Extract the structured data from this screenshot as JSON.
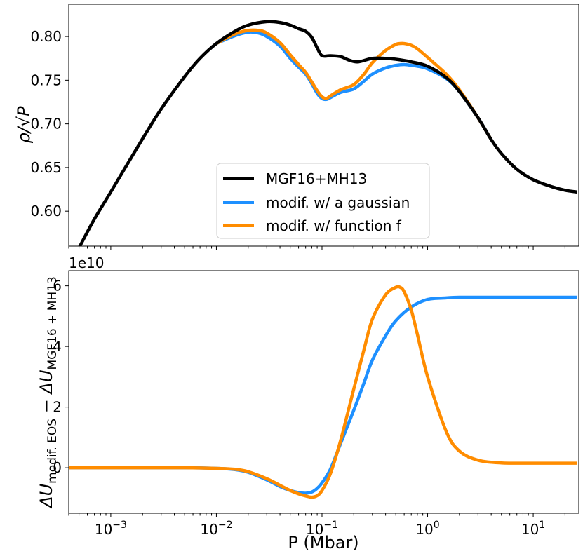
{
  "chart_data": [
    {
      "type": "line",
      "xscale": "log",
      "xlim": [
        0.0004,
        27
      ],
      "ylim": [
        0.56,
        0.837
      ],
      "xlabel": "",
      "ylabel": "ρ/√P",
      "yticks": [
        0.6,
        0.65,
        0.7,
        0.75,
        0.8
      ],
      "ytick_labels": [
        "0.60",
        "0.65",
        "0.70",
        "0.75",
        "0.80"
      ],
      "grid": false,
      "legend_position": "lower-center",
      "series": [
        {
          "name": "MGF16+MH13",
          "color": "#000000",
          "x": [
            0.0005,
            0.0007,
            0.001,
            0.002,
            0.003,
            0.005,
            0.007,
            0.01,
            0.015,
            0.02,
            0.03,
            0.04,
            0.05,
            0.06,
            0.07,
            0.08,
            0.09,
            0.1,
            0.12,
            0.15,
            0.18,
            0.22,
            0.3,
            0.4,
            0.5,
            0.7,
            1.0,
            1.5,
            2.0,
            3.0,
            4.0,
            5.0,
            7.0,
            10.0,
            15.0,
            20.0,
            26.0
          ],
          "y": [
            0.558,
            0.591,
            0.622,
            0.683,
            0.717,
            0.754,
            0.775,
            0.792,
            0.806,
            0.813,
            0.817,
            0.816,
            0.813,
            0.809,
            0.806,
            0.799,
            0.787,
            0.778,
            0.778,
            0.777,
            0.773,
            0.771,
            0.775,
            0.775,
            0.774,
            0.771,
            0.766,
            0.753,
            0.737,
            0.707,
            0.682,
            0.666,
            0.648,
            0.636,
            0.628,
            0.624,
            0.622
          ]
        },
        {
          "name": "modif. w/ a gaussian",
          "color": "#1e90ff",
          "x": [
            0.01,
            0.015,
            0.02,
            0.025,
            0.03,
            0.04,
            0.05,
            0.06,
            0.07,
            0.08,
            0.09,
            0.1,
            0.11,
            0.12,
            0.15,
            0.2,
            0.25,
            0.3,
            0.4,
            0.5,
            0.6,
            0.7,
            0.8,
            1.0,
            1.5,
            2.0,
            3.0,
            4.0
          ],
          "y": [
            0.792,
            0.801,
            0.805,
            0.804,
            0.8,
            0.789,
            0.775,
            0.765,
            0.757,
            0.746,
            0.735,
            0.729,
            0.728,
            0.73,
            0.736,
            0.74,
            0.749,
            0.757,
            0.764,
            0.767,
            0.768,
            0.767,
            0.766,
            0.763,
            0.752,
            0.737,
            0.707,
            0.682
          ]
        },
        {
          "name": "modif. w/ function f",
          "color": "#ff8c00",
          "x": [
            0.01,
            0.015,
            0.02,
            0.025,
            0.03,
            0.04,
            0.05,
            0.06,
            0.07,
            0.08,
            0.09,
            0.1,
            0.11,
            0.12,
            0.15,
            0.2,
            0.25,
            0.3,
            0.4,
            0.5,
            0.55,
            0.6,
            0.7,
            0.8,
            1.0,
            1.5,
            2.0,
            3.0,
            4.0
          ],
          "y": [
            0.792,
            0.803,
            0.807,
            0.807,
            0.804,
            0.793,
            0.779,
            0.768,
            0.759,
            0.748,
            0.738,
            0.731,
            0.729,
            0.732,
            0.739,
            0.745,
            0.757,
            0.77,
            0.784,
            0.791,
            0.792,
            0.792,
            0.79,
            0.786,
            0.776,
            0.757,
            0.739,
            0.707,
            0.682
          ]
        }
      ]
    },
    {
      "type": "line",
      "xscale": "log",
      "xlim": [
        0.0004,
        27
      ],
      "ylim": [
        -1.5,
        6.5
      ],
      "xlabel": "P (Mbar)",
      "ylabel": "ΔU modif. EOS − ΔU MGF16+MH13",
      "ylabel_main_1": "ΔU",
      "ylabel_sub_1": "modif. EOS",
      "ylabel_mid": " − ΔU",
      "ylabel_sub_2": "MGF16 + MH13",
      "offset_text": "1e10",
      "yticks": [
        0,
        2,
        4,
        6
      ],
      "ytick_labels": [
        "0",
        "2",
        "4",
        "6"
      ],
      "xticks": [
        0.001,
        0.01,
        0.1,
        1,
        10
      ],
      "xtick_labels": [
        {
          "base": "10",
          "exp": "−3"
        },
        {
          "base": "10",
          "exp": "−2"
        },
        {
          "base": "10",
          "exp": "−1"
        },
        {
          "base": "10",
          "exp": "0"
        },
        {
          "base": "10",
          "exp": "1"
        }
      ],
      "grid": false,
      "series": [
        {
          "name": "modif. w/ a gaussian",
          "color": "#1e90ff",
          "x": [
            0.0004,
            0.001,
            0.005,
            0.01,
            0.015,
            0.02,
            0.03,
            0.04,
            0.05,
            0.06,
            0.07,
            0.08,
            0.09,
            0.1,
            0.12,
            0.15,
            0.2,
            0.25,
            0.3,
            0.4,
            0.5,
            0.7,
            1.0,
            1.5,
            2.0,
            3.0,
            5.0,
            10.0,
            26.0
          ],
          "y": [
            0.0,
            0.0,
            0.0,
            -0.02,
            -0.06,
            -0.15,
            -0.4,
            -0.62,
            -0.75,
            -0.82,
            -0.84,
            -0.8,
            -0.68,
            -0.5,
            -0.05,
            0.8,
            1.9,
            2.8,
            3.55,
            4.35,
            4.85,
            5.3,
            5.55,
            5.6,
            5.62,
            5.62,
            5.62,
            5.62,
            5.62
          ]
        },
        {
          "name": "modif. w/ function f",
          "color": "#ff8c00",
          "x": [
            0.0004,
            0.001,
            0.005,
            0.01,
            0.015,
            0.02,
            0.03,
            0.04,
            0.05,
            0.06,
            0.07,
            0.08,
            0.09,
            0.1,
            0.12,
            0.15,
            0.2,
            0.25,
            0.3,
            0.4,
            0.5,
            0.55,
            0.6,
            0.7,
            0.8,
            1.0,
            1.5,
            2.0,
            3.0,
            5.0,
            10.0,
            26.0
          ],
          "y": [
            0.0,
            0.0,
            0.0,
            -0.02,
            -0.05,
            -0.13,
            -0.36,
            -0.58,
            -0.75,
            -0.86,
            -0.93,
            -0.97,
            -0.92,
            -0.75,
            -0.2,
            0.9,
            2.6,
            3.9,
            4.9,
            5.7,
            5.95,
            5.95,
            5.8,
            5.2,
            4.4,
            3.0,
            1.2,
            0.55,
            0.25,
            0.16,
            0.15,
            0.15
          ]
        }
      ]
    }
  ]
}
